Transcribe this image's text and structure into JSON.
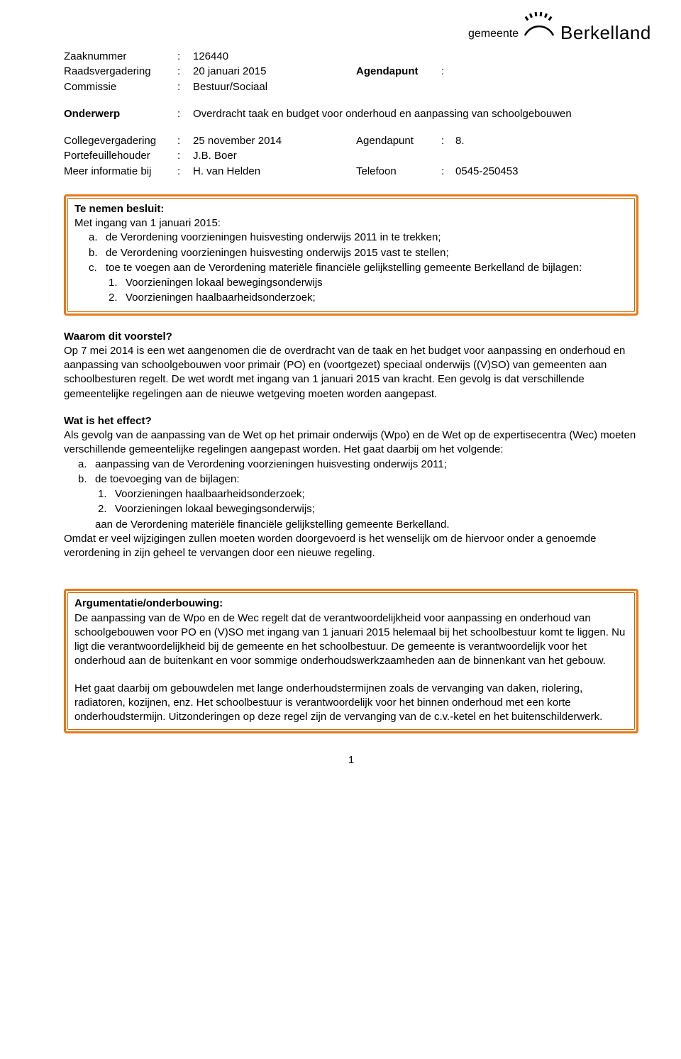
{
  "logo": {
    "gemeente": "gemeente",
    "name": "Berkelland"
  },
  "meta": {
    "zaaknummer_label": "Zaaknummer",
    "zaaknummer": "126440",
    "raadsvergadering_label": "Raadsvergadering",
    "raadsvergadering": "20 januari 2015",
    "agendapunt1_label": "Agendapunt",
    "agendapunt1": "",
    "commissie_label": "Commissie",
    "commissie": "Bestuur/Sociaal",
    "onderwerp_label": "Onderwerp",
    "onderwerp": "Overdracht taak en budget voor onderhoud en aanpassing van schoolgebouwen",
    "college_label": "Collegevergadering",
    "college": "25 november 2014",
    "agendapunt2_label": "Agendapunt",
    "agendapunt2": "8.",
    "portefeuille_label": "Portefeuillehouder",
    "portefeuille": "J.B. Boer",
    "meerinfo_label": "Meer informatie bij",
    "meerinfo": "H. van Helden",
    "telefoon_label": "Telefoon",
    "telefoon": "0545-250453"
  },
  "colors": {
    "border_outer": "#e97817",
    "border_inner": "#cc6600",
    "text": "#000000"
  },
  "box1": {
    "title": "Te nemen besluit:",
    "intro": "Met ingang van 1 januari 2015:",
    "items": [
      {
        "m": "a.",
        "t": "de Verordening voorzieningen huisvesting onderwijs 2011 in te trekken;"
      },
      {
        "m": "b.",
        "t": "de Verordening voorzieningen huisvesting onderwijs 2015 vast te stellen;"
      },
      {
        "m": "c.",
        "t": "toe te voegen aan de Verordening materiële financiële gelijkstelling gemeente Berkelland de bijlagen:"
      }
    ],
    "subitems": [
      {
        "m": "1.",
        "t": "Voorzieningen lokaal bewegingsonderwijs"
      },
      {
        "m": "2.",
        "t": "Voorzieningen haalbaarheidsonderzoek;"
      }
    ]
  },
  "section_waarom": {
    "title": "Waarom dit voorstel?",
    "body": "Op 7 mei 2014 is een wet aangenomen die de overdracht van de taak en het budget voor aanpassing en onderhoud en aanpassing van schoolgebouwen voor primair (PO) en (voortgezet) speciaal onderwijs ((V)SO) van gemeenten aan schoolbesturen regelt. De wet wordt met ingang van 1 januari 2015 van kracht. Een gevolg is dat verschillende gemeentelijke regelingen aan de nieuwe wetgeving moeten worden aangepast."
  },
  "section_effect": {
    "title": "Wat is het effect?",
    "intro": "Als gevolg van de aanpassing van de Wet op het primair onderwijs (Wpo) en de Wet op de expertisecentra (Wec) moeten verschillende gemeentelijke regelingen aangepast worden. Het gaat daarbij om het volgende:",
    "items": [
      {
        "m": "a.",
        "t": "aanpassing van de Verordening voorzieningen huisvesting onderwijs 2011;"
      },
      {
        "m": "b.",
        "t": "de toevoeging van de bijlagen:"
      }
    ],
    "subitems": [
      {
        "m": "1.",
        "t": "Voorzieningen haalbaarheidsonderzoek;"
      },
      {
        "m": "2.",
        "t": "Voorzieningen lokaal bewegingsonderwijs;"
      }
    ],
    "sub_trailer": "aan de Verordening materiële financiële gelijkstelling gemeente Berkelland.",
    "outro": "Omdat er veel wijzigingen zullen moeten worden doorgevoerd is het wenselijk om de hiervoor onder a genoemde verordening in zijn geheel te vervangen door een nieuwe regeling."
  },
  "box2": {
    "title": "Argumentatie/onderbouwing:",
    "p1": "De aanpassing van de Wpo en de Wec regelt dat de verantwoordelijkheid voor aanpassing en onderhoud van schoolgebouwen voor PO en (V)SO met ingang van 1 januari 2015 helemaal bij het schoolbestuur komt te liggen. Nu ligt die verantwoordelijkheid bij de gemeente en het schoolbestuur. De gemeente is verantwoordelijk voor het onderhoud aan de buitenkant en voor sommige onderhoudswerkzaamheden aan de binnenkant van het gebouw.",
    "p2": "Het gaat daarbij om gebouwdelen met lange onderhoudstermijnen zoals de vervanging van daken, riolering, radiatoren, kozijnen, enz. Het schoolbestuur is verantwoordelijk voor het binnen onderhoud met een korte onderhoudstermijn. Uitzonderingen op deze regel zijn de vervanging van de c.v.-ketel en het buitenschilderwerk."
  },
  "page_number": "1"
}
